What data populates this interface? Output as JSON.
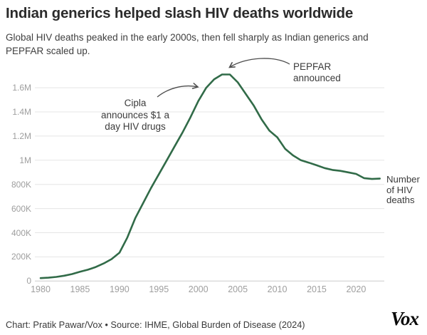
{
  "header": {
    "title": "Indian generics helped slash HIV deaths worldwide",
    "subtitle": "Global HIV deaths peaked in the early 2000s, then fell sharply as Indian generics and PEPFAR scaled up."
  },
  "chart_data": {
    "type": "line",
    "title": "Indian generics helped slash HIV deaths worldwide",
    "series_name": "Number of HIV deaths",
    "x": [
      1980,
      1981,
      1982,
      1983,
      1984,
      1985,
      1986,
      1987,
      1988,
      1989,
      1990,
      1991,
      1992,
      1993,
      1994,
      1995,
      1996,
      1997,
      1998,
      1999,
      2000,
      2001,
      2002,
      2003,
      2004,
      2005,
      2006,
      2007,
      2008,
      2009,
      2010,
      2011,
      2012,
      2013,
      2014,
      2015,
      2016,
      2017,
      2018,
      2019,
      2020,
      2021,
      2022,
      2023
    ],
    "values": [
      24000,
      28000,
      34000,
      44000,
      58000,
      77000,
      94000,
      116000,
      146000,
      182000,
      235000,
      360000,
      520000,
      645000,
      770000,
      885000,
      1000000,
      1115000,
      1230000,
      1355000,
      1490000,
      1600000,
      1670000,
      1710000,
      1710000,
      1645000,
      1550000,
      1455000,
      1340000,
      1245000,
      1190000,
      1095000,
      1040000,
      1000000,
      980000,
      958000,
      935000,
      920000,
      912000,
      900000,
      887000,
      852000,
      845000,
      848000
    ],
    "ylim": [
      0,
      1720000
    ],
    "xlim": [
      1980,
      2023
    ],
    "grid": "horizontal",
    "legend_position": "right-end-of-line",
    "line_color": "#316b48",
    "y_ticks": [
      {
        "label": "0",
        "value": 0
      },
      {
        "label": "200K",
        "value": 200000
      },
      {
        "label": "400K",
        "value": 400000
      },
      {
        "label": "600K",
        "value": 600000
      },
      {
        "label": "800K",
        "value": 800000
      },
      {
        "label": "1M",
        "value": 1000000
      },
      {
        "label": "1.2M",
        "value": 1200000
      },
      {
        "label": "1.4M",
        "value": 1400000
      },
      {
        "label": "1.6M",
        "value": 1600000
      }
    ],
    "x_ticks": [
      1980,
      1985,
      1990,
      1995,
      2000,
      2005,
      2010,
      2015,
      2020
    ],
    "annotations": [
      {
        "id": "cipla",
        "lines": [
          "Cipla",
          "announces $1 a",
          "day HIV drugs"
        ],
        "points_to_year": 2001
      },
      {
        "id": "pepfar",
        "lines": [
          "PEPFAR",
          "announced"
        ],
        "points_to_year": 2003
      },
      {
        "id": "series-label",
        "lines": [
          "Number",
          "of HIV",
          "deaths"
        ]
      }
    ]
  },
  "footer": {
    "credit": "Chart: Pratik Pawar/Vox • Source: IHME, Global Burden of Disease (2024)",
    "logo": "Vox"
  }
}
